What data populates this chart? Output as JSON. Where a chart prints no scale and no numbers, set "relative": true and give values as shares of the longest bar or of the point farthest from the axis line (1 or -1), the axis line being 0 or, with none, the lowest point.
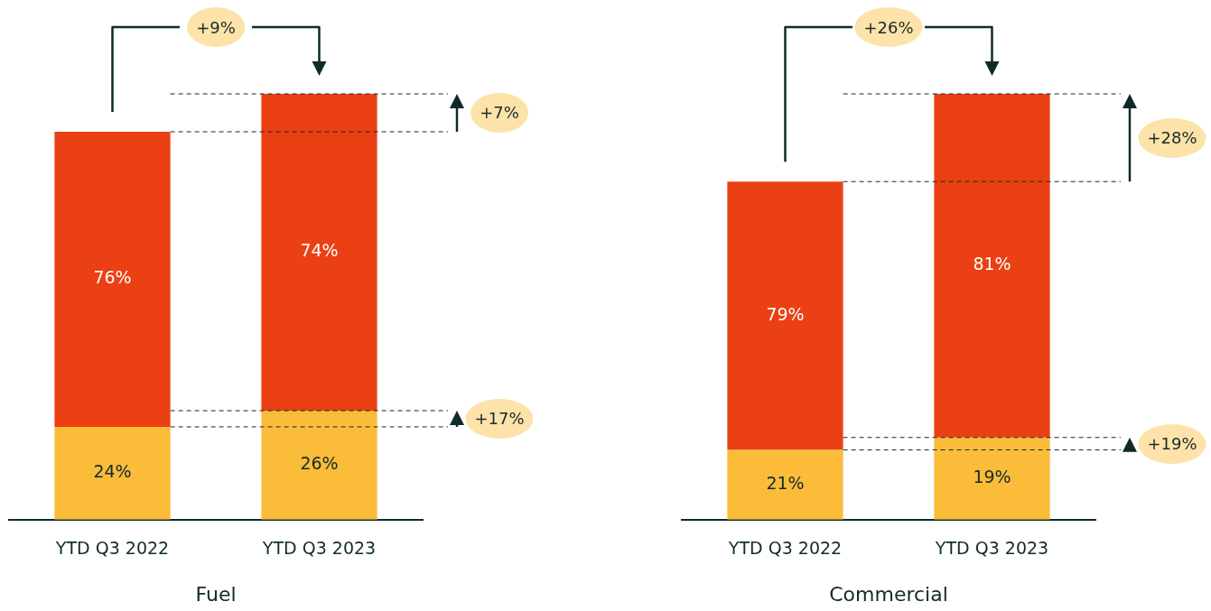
{
  "chart_data": [
    {
      "type": "bar",
      "stacked": true,
      "relative": true,
      "xlabel": "Fuel",
      "categories": [
        "YTD Q3 2022",
        "YTD Q3 2023"
      ],
      "series": [
        {
          "color": "#fbbc3a",
          "values": [
            0.218,
            0.256
          ]
        },
        {
          "color": "#eb4014",
          "values": [
            0.693,
            0.744
          ]
        }
      ],
      "annotations": [
        "+9%",
        "+7%",
        "+17%",
        "24%",
        "26%",
        "76%",
        "74%"
      ]
    },
    {
      "type": "bar",
      "stacked": true,
      "relative": true,
      "xlabel": "Commercial",
      "categories": [
        "YTD Q3 2022",
        "YTD Q3 2023"
      ],
      "series": [
        {
          "color": "#fbbc3a",
          "values": [
            0.164,
            0.193
          ]
        },
        {
          "color": "#eb4014",
          "values": [
            0.63,
            0.807
          ]
        }
      ],
      "annotations": [
        "+26%",
        "+28%",
        "+19%",
        "21%",
        "19%",
        "79%",
        "81%"
      ]
    }
  ]
}
